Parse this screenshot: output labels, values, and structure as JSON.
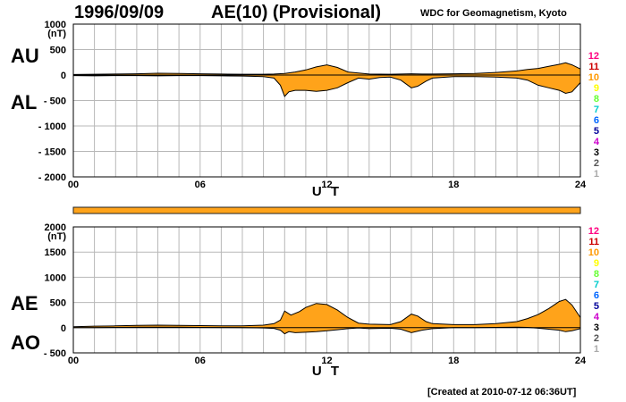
{
  "header": {
    "date": "1996/09/09",
    "title": "AE(10) (Provisional)",
    "source": "WDC for Geomagnetism, Kyoto"
  },
  "footer": {
    "created": "[Created at 2010-07-12 06:36UT]"
  },
  "station_legend": {
    "labels": [
      "12",
      "11",
      "10",
      "9",
      "8",
      "7",
      "6",
      "5",
      "4",
      "3",
      "2",
      "1"
    ],
    "colors": [
      "#ff0080",
      "#cc0000",
      "#ff9900",
      "#ffff00",
      "#66ff33",
      "#00cccc",
      "#0066ff",
      "#000099",
      "#cc00cc",
      "#000000",
      "#555555",
      "#aaaaaa"
    ]
  },
  "status_bar_color": "#ffa31a",
  "fill_color": "#ffa31a",
  "chart_data": [
    {
      "type": "area",
      "panel_labels": [
        "AU",
        "AL"
      ],
      "ylabel": "(nT)",
      "xlabel": "U T",
      "xlim": [
        0,
        24
      ],
      "ylim": [
        -2000,
        1000
      ],
      "xticks": [
        "00",
        "06",
        "12",
        "18",
        "24"
      ],
      "yticks": [
        "1000",
        "500",
        "0",
        "- 500",
        "- 1000",
        "- 1500",
        "- 2000"
      ],
      "ytick_values": [
        1000,
        500,
        0,
        -500,
        -1000,
        -1500,
        -2000
      ],
      "series": [
        {
          "label": "AU",
          "x": [
            0,
            1,
            2,
            3,
            4,
            5,
            6,
            7,
            8,
            9,
            9.5,
            10,
            10.5,
            11,
            11.5,
            12,
            12.5,
            13,
            14,
            15,
            15.5,
            16,
            16.5,
            17,
            18,
            19,
            20,
            21,
            21.5,
            22,
            22.5,
            23,
            23.3,
            23.6,
            24
          ],
          "y": [
            10,
            15,
            20,
            25,
            35,
            30,
            25,
            20,
            15,
            15,
            20,
            30,
            60,
            100,
            160,
            200,
            150,
            60,
            20,
            15,
            20,
            25,
            20,
            20,
            25,
            30,
            50,
            80,
            110,
            130,
            170,
            210,
            240,
            200,
            120
          ]
        },
        {
          "label": "AL",
          "x": [
            0,
            1,
            2,
            3,
            4,
            5,
            6,
            7,
            8,
            9,
            9.5,
            9.8,
            10,
            10.2,
            10.5,
            11,
            11.5,
            12,
            12.5,
            13,
            13.5,
            14,
            14.5,
            15,
            15.5,
            16,
            16.3,
            16.7,
            17,
            18,
            19,
            20,
            21,
            21.5,
            22,
            22.5,
            23,
            23.3,
            23.6,
            24
          ],
          "y": [
            -10,
            -15,
            -10,
            -10,
            -15,
            -10,
            -10,
            -15,
            -20,
            -30,
            -60,
            -200,
            -420,
            -330,
            -300,
            -300,
            -320,
            -300,
            -250,
            -150,
            -60,
            -80,
            -50,
            -40,
            -100,
            -250,
            -220,
            -120,
            -60,
            -30,
            -30,
            -40,
            -60,
            -100,
            -200,
            -250,
            -300,
            -360,
            -330,
            -150
          ]
        }
      ]
    },
    {
      "type": "area",
      "panel_labels": [
        "AE",
        "AO"
      ],
      "ylabel": "(nT)",
      "xlabel": "U T",
      "xlim": [
        0,
        24
      ],
      "ylim": [
        -500,
        2000
      ],
      "xticks": [
        "00",
        "06",
        "12",
        "18",
        "24"
      ],
      "yticks": [
        "2000",
        "1500",
        "1000",
        "500",
        "0",
        "- 500"
      ],
      "ytick_values": [
        2000,
        1500,
        1000,
        500,
        0,
        -500
      ],
      "series": [
        {
          "label": "AE",
          "x": [
            0,
            1,
            2,
            3,
            4,
            5,
            6,
            7,
            8,
            9,
            9.5,
            9.8,
            10,
            10.3,
            10.7,
            11,
            11.5,
            12,
            12.5,
            13,
            13.5,
            14,
            15,
            15.5,
            16,
            16.3,
            16.7,
            17,
            18,
            19,
            20,
            21,
            21.5,
            22,
            22.5,
            23,
            23.3,
            23.6,
            24
          ],
          "y": [
            20,
            30,
            35,
            45,
            50,
            45,
            40,
            35,
            35,
            50,
            80,
            150,
            330,
            250,
            320,
            400,
            480,
            460,
            350,
            200,
            90,
            70,
            60,
            120,
            270,
            230,
            120,
            80,
            60,
            60,
            80,
            120,
            180,
            260,
            380,
            520,
            560,
            450,
            200
          ]
        },
        {
          "label": "AO",
          "x": [
            0,
            1,
            2,
            3,
            4,
            5,
            6,
            7,
            8,
            9,
            9.5,
            9.8,
            10,
            10.2,
            10.5,
            11,
            11.5,
            12,
            12.5,
            13,
            13.5,
            14,
            15,
            15.5,
            16,
            16.5,
            17,
            18,
            19,
            20,
            21,
            21.5,
            22,
            22.5,
            23,
            23.3,
            23.6,
            24
          ],
          "y": [
            0,
            0,
            5,
            8,
            10,
            8,
            6,
            3,
            0,
            -5,
            -15,
            -50,
            -120,
            -80,
            -100,
            -90,
            -80,
            -60,
            -40,
            -20,
            -5,
            -20,
            -10,
            -30,
            -100,
            -50,
            -20,
            0,
            0,
            5,
            10,
            5,
            -10,
            -30,
            -50,
            -80,
            -60,
            -20
          ]
        }
      ]
    }
  ]
}
